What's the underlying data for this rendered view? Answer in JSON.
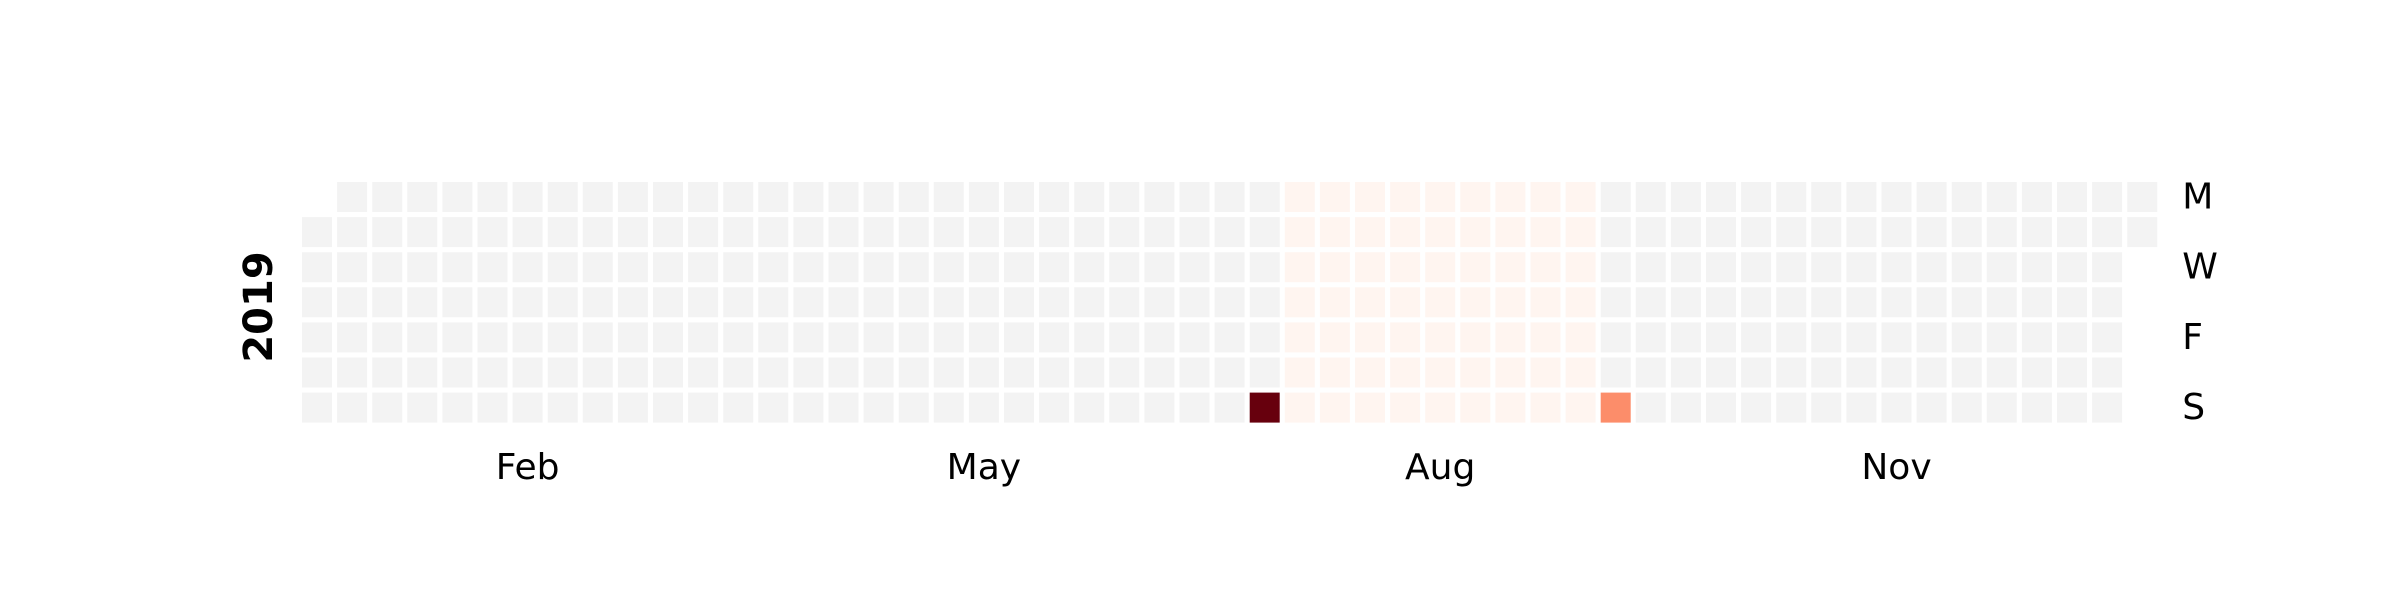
{
  "chart_data": {
    "type": "heatmap",
    "subtype": "calendar",
    "year": 2019,
    "year_label": "2019",
    "week_start": "Monday",
    "day_labels": [
      {
        "row": 0,
        "text": "M"
      },
      {
        "row": 2,
        "text": "W"
      },
      {
        "row": 4,
        "text": "F"
      },
      {
        "row": 6,
        "text": "S"
      }
    ],
    "month_labels": [
      {
        "month": 2,
        "text": "Feb"
      },
      {
        "month": 5,
        "text": "May"
      },
      {
        "month": 8,
        "text": "Aug"
      },
      {
        "month": 11,
        "text": "Nov"
      }
    ],
    "colors": {
      "empty": "#f3f3f3",
      "background": "#ffffff",
      "scale": [
        "#fff5f0",
        "#fc8d6a",
        "#67000d"
      ]
    },
    "value_range": [
      0,
      10
    ],
    "background_days": {
      "start": "2019-07-15",
      "end": "2019-09-15",
      "value": 0.3
    },
    "highlight_days": [
      {
        "date": "2019-07-14",
        "value": 10
      },
      {
        "date": "2019-09-22",
        "value": 5
      }
    ],
    "colorbar": false,
    "grid": false
  }
}
